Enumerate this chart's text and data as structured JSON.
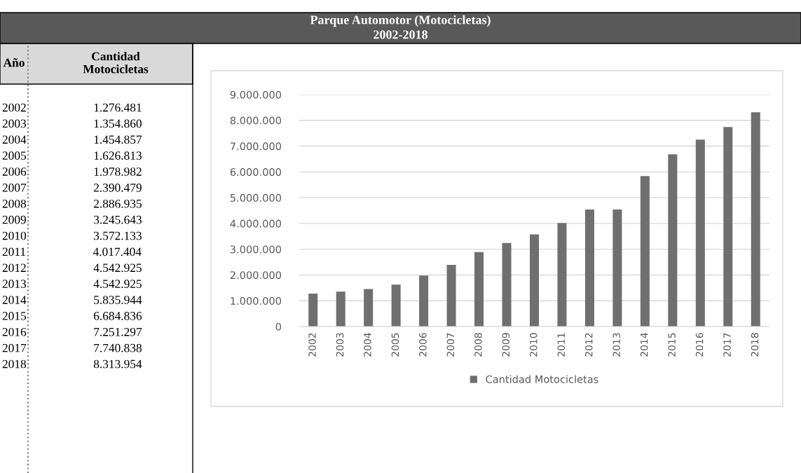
{
  "chart_data": [
    {
      "type": "other",
      "annotations": [
        "Año",
        "Cantidad\nMotocicletas",
        "2002                      1.276.481",
        "2003                      1.354.860",
        "2004                      1.454.857",
        "2005                      1.626.813",
        "2006                      1.978.982",
        "2007                      2.390.479",
        "2008                      2.886.935",
        "2009                      3.245.643",
        "2010                      3.572.133",
        "2011                      4.017.404",
        "2012                      4.542.925",
        "2013                      4.542.925",
        "2014                      5.835.944",
        "2015                      6.684.836",
        "2016                      7.251.297",
        "2017                      7.740.838",
        "2018                      8.313.954"
      ]
    },
    {
      "type": "bar",
      "title": "Parque Automotor (Motocicletas)",
      "subtitle": "2002-2018",
      "categories": [
        "2002",
        "2003",
        "2004",
        "2005",
        "2006",
        "2007",
        "2008",
        "2009",
        "2010",
        "2011",
        "2012",
        "2013",
        "2014",
        "2015",
        "2016",
        "2017",
        "2018"
      ],
      "series": [
        {
          "name": "Cantidad Motocicletas",
          "color": "#6f6f6f",
          "values": [
            1276481,
            1354860,
            1454857,
            1626813,
            1978982,
            2390479,
            2886935,
            3245643,
            3572133,
            4017404,
            4542925,
            4542925,
            5835944,
            6684836,
            7251297,
            7740838,
            8313954
          ]
        }
      ],
      "ylim": [
        0,
        9000000
      ],
      "yticks": [
        {
          "value": 0,
          "label": "0"
        },
        {
          "value": 1000000,
          "label": "1.000.000"
        },
        {
          "value": 2000000,
          "label": "2.000.000"
        },
        {
          "value": 3000000,
          "label": "3.000.000"
        },
        {
          "value": 4000000,
          "label": "4.000.000"
        },
        {
          "value": 5000000,
          "label": "5.000.000"
        },
        {
          "value": 6000000,
          "label": "6.000.000"
        },
        {
          "value": 7000000,
          "label": "7.000.000"
        },
        {
          "value": 8000000,
          "label": "8.000.000"
        },
        {
          "value": 9000000,
          "label": "9.000.000"
        }
      ],
      "grid": "y",
      "legend": "bottom"
    }
  ]
}
